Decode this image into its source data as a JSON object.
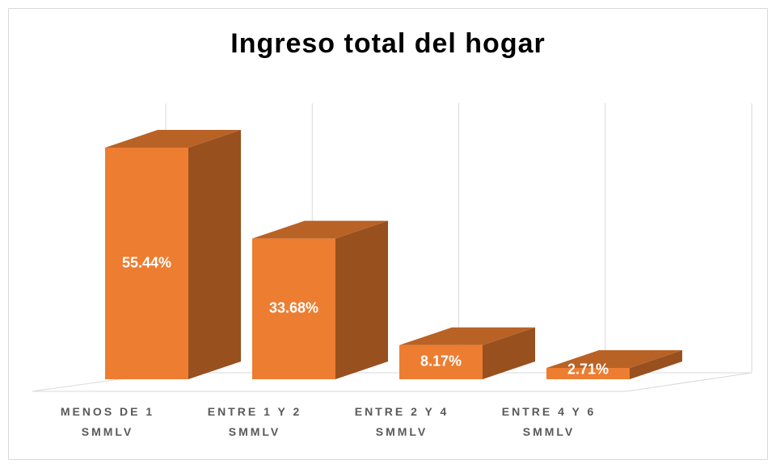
{
  "chart_data": {
    "type": "bar3d",
    "title": "Ingreso total del hogar",
    "categories": [
      "MENOS DE 1 SMMLV",
      "ENTRE 1 Y 2 SMMLV",
      "ENTRE 2 Y 4 SMMLV",
      "ENTRE 4 Y 6 SMMLV"
    ],
    "values": [
      55.44,
      33.68,
      8.17,
      2.71
    ],
    "value_labels": [
      "55.44%",
      "33.68%",
      "8.17%",
      "2.71%"
    ],
    "color": "#ed7d31",
    "grid": true
  }
}
